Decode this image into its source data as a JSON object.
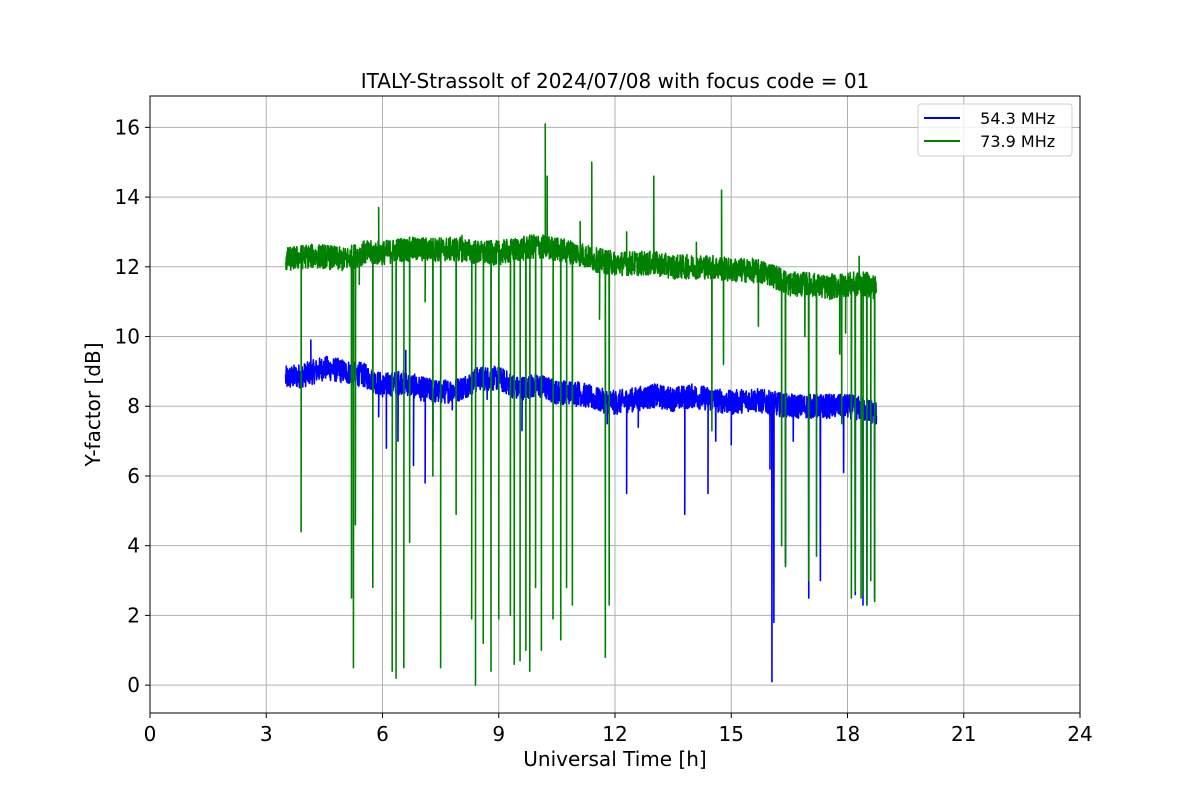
{
  "chart_data": {
    "type": "line",
    "title": "ITALY-Strassolt of 2024/07/08 with focus code = 01",
    "xlabel": "Universal Time [h]",
    "ylabel": "Y-factor [dB]",
    "xlim": [
      0,
      24
    ],
    "ylim": [
      -0.8,
      16.9
    ],
    "xticks": [
      0,
      3,
      6,
      9,
      12,
      15,
      18,
      21,
      24
    ],
    "yticks": [
      0,
      2,
      4,
      6,
      8,
      10,
      12,
      14,
      16
    ],
    "grid": true,
    "legend_position": "top-right",
    "series": [
      {
        "name": "  54.3 MHz",
        "color": "#0000ff",
        "base": [
          [
            3.5,
            8.8
          ],
          [
            4.0,
            8.9
          ],
          [
            4.5,
            9.1
          ],
          [
            5.0,
            9.0
          ],
          [
            5.5,
            8.9
          ],
          [
            6.0,
            8.6
          ],
          [
            6.5,
            8.7
          ],
          [
            7.0,
            8.5
          ],
          [
            7.5,
            8.4
          ],
          [
            8.0,
            8.5
          ],
          [
            8.5,
            8.8
          ],
          [
            9.0,
            8.8
          ],
          [
            9.5,
            8.5
          ],
          [
            10.0,
            8.6
          ],
          [
            10.5,
            8.4
          ],
          [
            11.0,
            8.4
          ],
          [
            11.5,
            8.2
          ],
          [
            12.0,
            8.1
          ],
          [
            12.5,
            8.2
          ],
          [
            13.0,
            8.3
          ],
          [
            13.5,
            8.2
          ],
          [
            14.0,
            8.3
          ],
          [
            14.5,
            8.2
          ],
          [
            15.0,
            8.1
          ],
          [
            15.5,
            8.2
          ],
          [
            16.0,
            8.1
          ],
          [
            16.5,
            8.0
          ],
          [
            17.0,
            8.0
          ],
          [
            17.5,
            8.0
          ],
          [
            18.0,
            8.0
          ],
          [
            18.5,
            7.9
          ],
          [
            18.75,
            7.8
          ]
        ],
        "dips": [
          [
            4.15,
            9.9
          ],
          [
            5.9,
            7.7
          ],
          [
            6.1,
            6.8
          ],
          [
            6.4,
            7.0
          ],
          [
            6.6,
            9.6
          ],
          [
            6.8,
            6.3
          ],
          [
            7.1,
            5.8
          ],
          [
            7.3,
            7.0
          ],
          [
            7.8,
            7.9
          ],
          [
            8.7,
            8.2
          ],
          [
            9.6,
            7.3
          ],
          [
            11.0,
            8.0
          ],
          [
            11.8,
            7.5
          ],
          [
            12.3,
            5.5
          ],
          [
            12.6,
            7.4
          ],
          [
            13.8,
            4.9
          ],
          [
            14.4,
            5.5
          ],
          [
            14.6,
            7.0
          ],
          [
            15.0,
            6.9
          ],
          [
            16.0,
            6.2
          ],
          [
            16.05,
            0.1
          ],
          [
            16.1,
            1.8
          ],
          [
            16.4,
            3.5
          ],
          [
            16.6,
            7.0
          ],
          [
            17.0,
            2.5
          ],
          [
            17.3,
            3.0
          ],
          [
            17.9,
            6.1
          ],
          [
            18.2,
            2.6
          ],
          [
            18.4,
            2.3
          ],
          [
            18.5,
            2.3
          ],
          [
            18.6,
            5.6
          ],
          [
            18.7,
            2.5
          ]
        ]
      },
      {
        "name": "  73.9 MHz",
        "color": "#008000",
        "base": [
          [
            3.5,
            12.2
          ],
          [
            4.0,
            12.3
          ],
          [
            4.5,
            12.3
          ],
          [
            5.0,
            12.2
          ],
          [
            5.5,
            12.4
          ],
          [
            6.0,
            12.4
          ],
          [
            6.5,
            12.5
          ],
          [
            7.0,
            12.5
          ],
          [
            7.5,
            12.5
          ],
          [
            8.0,
            12.5
          ],
          [
            8.5,
            12.4
          ],
          [
            9.0,
            12.4
          ],
          [
            9.5,
            12.5
          ],
          [
            10.0,
            12.6
          ],
          [
            10.5,
            12.5
          ],
          [
            11.0,
            12.4
          ],
          [
            11.5,
            12.2
          ],
          [
            12.0,
            12.1
          ],
          [
            12.5,
            12.1
          ],
          [
            13.0,
            12.1
          ],
          [
            13.5,
            12.0
          ],
          [
            14.0,
            12.0
          ],
          [
            14.5,
            12.0
          ],
          [
            15.0,
            11.9
          ],
          [
            15.5,
            11.9
          ],
          [
            16.0,
            11.8
          ],
          [
            16.5,
            11.5
          ],
          [
            17.0,
            11.5
          ],
          [
            17.5,
            11.4
          ],
          [
            18.0,
            11.5
          ],
          [
            18.5,
            11.5
          ],
          [
            18.75,
            11.4
          ]
        ],
        "dips": [
          [
            3.9,
            4.4
          ],
          [
            5.2,
            2.5
          ],
          [
            5.25,
            0.5
          ],
          [
            5.3,
            4.6
          ],
          [
            5.4,
            11.5
          ],
          [
            5.9,
            13.7
          ],
          [
            5.75,
            2.8
          ],
          [
            6.25,
            0.4
          ],
          [
            6.35,
            0.2
          ],
          [
            6.55,
            0.5
          ],
          [
            6.7,
            4.1
          ],
          [
            6.9,
            12.8
          ],
          [
            7.1,
            11.0
          ],
          [
            7.3,
            6.0
          ],
          [
            7.5,
            0.5
          ],
          [
            7.9,
            4.9
          ],
          [
            8.05,
            12.9
          ],
          [
            8.3,
            1.9
          ],
          [
            8.4,
            0.0
          ],
          [
            8.6,
            1.2
          ],
          [
            8.8,
            0.4
          ],
          [
            9.0,
            1.9
          ],
          [
            9.3,
            2.0
          ],
          [
            9.4,
            0.6
          ],
          [
            9.55,
            0.7
          ],
          [
            9.7,
            1.0
          ],
          [
            9.8,
            0.4
          ],
          [
            9.95,
            2.8
          ],
          [
            10.1,
            1.0
          ],
          [
            10.2,
            16.1
          ],
          [
            10.25,
            14.6
          ],
          [
            10.4,
            1.9
          ],
          [
            10.6,
            1.3
          ],
          [
            10.75,
            2.8
          ],
          [
            10.9,
            2.3
          ],
          [
            11.1,
            13.3
          ],
          [
            11.4,
            15.0
          ],
          [
            11.6,
            10.5
          ],
          [
            11.75,
            0.8
          ],
          [
            11.85,
            2.3
          ],
          [
            12.3,
            13.0
          ],
          [
            12.5,
            12.0
          ],
          [
            13.0,
            14.6
          ],
          [
            14.1,
            12.7
          ],
          [
            14.5,
            7.3
          ],
          [
            14.6,
            11.8
          ],
          [
            14.75,
            14.2
          ],
          [
            14.8,
            9.2
          ],
          [
            15.0,
            12.2
          ],
          [
            15.7,
            10.3
          ],
          [
            16.3,
            4.0
          ],
          [
            16.4,
            3.4
          ],
          [
            16.9,
            10.0
          ],
          [
            17.0,
            3.0
          ],
          [
            17.2,
            3.7
          ],
          [
            17.6,
            11.8
          ],
          [
            17.8,
            9.5
          ],
          [
            17.85,
            7.5
          ],
          [
            17.95,
            10.1
          ],
          [
            18.1,
            2.5
          ],
          [
            18.2,
            2.7
          ],
          [
            18.3,
            12.3
          ],
          [
            18.35,
            2.5
          ],
          [
            18.4,
            2.6
          ],
          [
            18.5,
            2.3
          ],
          [
            18.6,
            3.0
          ],
          [
            18.7,
            2.4
          ]
        ]
      }
    ]
  }
}
